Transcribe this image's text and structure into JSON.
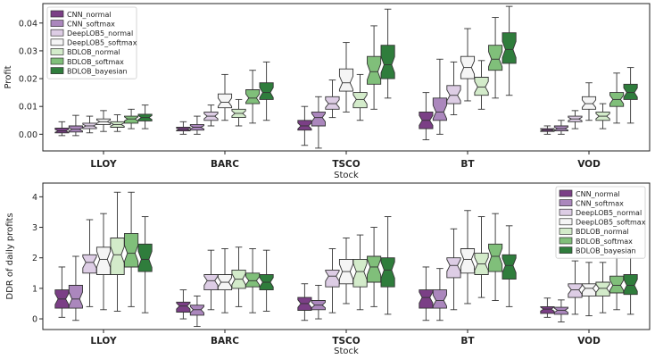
{
  "colors": {
    "CNN_normal": "#7b3f86",
    "CNN_softmax": "#ab87bd",
    "DeepLOB5_normal": "#ddcde5",
    "DeepLOB5_softmax": "#f5f5f5",
    "BDLOB_normal": "#d3ebca",
    "BDLOB_softmax": "#80bf7a",
    "BDLOB_bayesian": "#2f7d3c",
    "edge": "#333333"
  },
  "chart_data": [
    {
      "type": "boxplot",
      "xlabel": "Stock",
      "ylabel": "Profit",
      "ylim": [
        -0.006,
        0.047
      ],
      "yticks": [
        0.0,
        0.01,
        0.02,
        0.03,
        0.04
      ],
      "ytick_labels": [
        "0.00",
        "0.01",
        "0.02",
        "0.03",
        "0.04"
      ],
      "categories": [
        "LLOY",
        "BARC",
        "TSCO",
        "BT",
        "VOD"
      ],
      "legend_position": "top-left",
      "series": [
        {
          "name": "CNN_normal",
          "values": [
            {
              "low": -0.0005,
              "q1": 0.0005,
              "median": 0.0012,
              "q3": 0.0022,
              "high": 0.0045
            },
            {
              "low": 0.0,
              "q1": 0.0012,
              "median": 0.0018,
              "q3": 0.0025,
              "high": 0.0045
            },
            {
              "low": -0.004,
              "q1": 0.0015,
              "median": 0.003,
              "q3": 0.005,
              "high": 0.01
            },
            {
              "low": -0.002,
              "q1": 0.002,
              "median": 0.005,
              "q3": 0.008,
              "high": 0.015
            },
            {
              "low": 0.0,
              "q1": 0.001,
              "median": 0.0015,
              "q3": 0.002,
              "high": 0.003
            }
          ]
        },
        {
          "name": "CNN_softmax",
          "values": [
            {
              "low": -0.0005,
              "q1": 0.0008,
              "median": 0.0018,
              "q3": 0.003,
              "high": 0.0068
            },
            {
              "low": 0.0,
              "q1": 0.0015,
              "median": 0.0025,
              "q3": 0.0035,
              "high": 0.0065
            },
            {
              "low": -0.005,
              "q1": 0.003,
              "median": 0.006,
              "q3": 0.008,
              "high": 0.0135
            },
            {
              "low": 0.0,
              "q1": 0.005,
              "median": 0.008,
              "q3": 0.013,
              "high": 0.027
            },
            {
              "low": 0.0,
              "q1": 0.0012,
              "median": 0.002,
              "q3": 0.003,
              "high": 0.005
            }
          ]
        },
        {
          "name": "DeepLOB5_normal",
          "values": [
            {
              "low": 0.0005,
              "q1": 0.002,
              "median": 0.003,
              "q3": 0.004,
              "high": 0.0065
            },
            {
              "low": 0.003,
              "q1": 0.005,
              "median": 0.0065,
              "q3": 0.008,
              "high": 0.0105
            },
            {
              "low": 0.006,
              "q1": 0.009,
              "median": 0.011,
              "q3": 0.0135,
              "high": 0.0195
            },
            {
              "low": 0.007,
              "q1": 0.011,
              "median": 0.014,
              "q3": 0.0175,
              "high": 0.026
            },
            {
              "low": 0.002,
              "q1": 0.0045,
              "median": 0.0055,
              "q3": 0.0065,
              "high": 0.0085
            }
          ]
        },
        {
          "name": "DeepLOB5_softmax",
          "values": [
            {
              "low": 0.001,
              "q1": 0.0035,
              "median": 0.0045,
              "q3": 0.0055,
              "high": 0.0085
            },
            {
              "low": 0.005,
              "q1": 0.0095,
              "median": 0.0115,
              "q3": 0.0145,
              "high": 0.0215
            },
            {
              "low": 0.008,
              "q1": 0.0155,
              "median": 0.0185,
              "q3": 0.0235,
              "high": 0.033
            },
            {
              "low": 0.012,
              "q1": 0.02,
              "median": 0.024,
              "q3": 0.028,
              "high": 0.038
            },
            {
              "low": 0.005,
              "q1": 0.009,
              "median": 0.011,
              "q3": 0.0135,
              "high": 0.0185
            }
          ]
        },
        {
          "name": "BDLOB_normal",
          "values": [
            {
              "low": 0.001,
              "q1": 0.0025,
              "median": 0.0035,
              "q3": 0.0045,
              "high": 0.007
            },
            {
              "low": 0.003,
              "q1": 0.006,
              "median": 0.0075,
              "q3": 0.009,
              "high": 0.0125
            },
            {
              "low": 0.005,
              "q1": 0.0095,
              "median": 0.0125,
              "q3": 0.015,
              "high": 0.0215
            },
            {
              "low": 0.009,
              "q1": 0.014,
              "median": 0.017,
              "q3": 0.0205,
              "high": 0.0265
            },
            {
              "low": 0.002,
              "q1": 0.005,
              "median": 0.0065,
              "q3": 0.008,
              "high": 0.011
            }
          ]
        },
        {
          "name": "BDLOB_softmax",
          "values": [
            {
              "low": 0.002,
              "q1": 0.004,
              "median": 0.0055,
              "q3": 0.0065,
              "high": 0.009
            },
            {
              "low": 0.004,
              "q1": 0.011,
              "median": 0.013,
              "q3": 0.016,
              "high": 0.023
            },
            {
              "low": 0.009,
              "q1": 0.018,
              "median": 0.0225,
              "q3": 0.028,
              "high": 0.039
            },
            {
              "low": 0.013,
              "q1": 0.023,
              "median": 0.027,
              "q3": 0.032,
              "high": 0.042
            },
            {
              "low": 0.004,
              "q1": 0.01,
              "median": 0.0125,
              "q3": 0.015,
              "high": 0.022
            }
          ]
        },
        {
          "name": "BDLOB_bayesian",
          "values": [
            {
              "low": 0.002,
              "q1": 0.0048,
              "median": 0.006,
              "q3": 0.0072,
              "high": 0.0105
            },
            {
              "low": 0.005,
              "q1": 0.0125,
              "median": 0.015,
              "q3": 0.0185,
              "high": 0.026
            },
            {
              "low": 0.013,
              "q1": 0.02,
              "median": 0.025,
              "q3": 0.032,
              "high": 0.045
            },
            {
              "low": 0.014,
              "q1": 0.0255,
              "median": 0.0305,
              "q3": 0.0365,
              "high": 0.046
            },
            {
              "low": 0.004,
              "q1": 0.0125,
              "median": 0.015,
              "q3": 0.018,
              "high": 0.024
            }
          ]
        }
      ]
    },
    {
      "type": "boxplot",
      "xlabel": "Stock",
      "ylabel": "DDR of daily profits",
      "ylim": [
        -0.35,
        4.45
      ],
      "yticks": [
        0,
        1,
        2,
        3,
        4
      ],
      "ytick_labels": [
        "0",
        "1",
        "2",
        "3",
        "4"
      ],
      "categories": [
        "LLOY",
        "BARC",
        "TSCO",
        "BT",
        "VOD"
      ],
      "legend_position": "top-right",
      "series": [
        {
          "name": "CNN_normal",
          "values": [
            {
              "low": 0.05,
              "q1": 0.35,
              "median": 0.65,
              "q3": 0.95,
              "high": 1.7
            },
            {
              "low": 0.0,
              "q1": 0.22,
              "median": 0.42,
              "q3": 0.55,
              "high": 0.95
            },
            {
              "low": -0.05,
              "q1": 0.28,
              "median": 0.5,
              "q3": 0.7,
              "high": 1.15
            },
            {
              "low": -0.05,
              "q1": 0.35,
              "median": 0.7,
              "q3": 0.95,
              "high": 1.7
            },
            {
              "low": 0.05,
              "q1": 0.18,
              "median": 0.32,
              "q3": 0.4,
              "high": 0.68
            }
          ]
        },
        {
          "name": "CNN_softmax",
          "values": [
            {
              "low": -0.05,
              "q1": 0.35,
              "median": 0.65,
              "q3": 1.1,
              "high": 2.05
            },
            {
              "low": -0.25,
              "q1": 0.12,
              "median": 0.3,
              "q3": 0.45,
              "high": 0.75
            },
            {
              "low": 0.0,
              "q1": 0.3,
              "median": 0.45,
              "q3": 0.6,
              "high": 1.1
            },
            {
              "low": -0.05,
              "q1": 0.35,
              "median": 0.6,
              "q3": 0.95,
              "high": 1.65
            },
            {
              "low": -0.1,
              "q1": 0.15,
              "median": 0.28,
              "q3": 0.38,
              "high": 0.62
            }
          ]
        },
        {
          "name": "DeepLOB5_normal",
          "values": [
            {
              "low": 0.4,
              "q1": 1.5,
              "median": 1.85,
              "q3": 2.1,
              "high": 3.25
            },
            {
              "low": 0.3,
              "q1": 0.95,
              "median": 1.25,
              "q3": 1.45,
              "high": 2.25
            },
            {
              "low": 0.2,
              "q1": 1.05,
              "median": 1.4,
              "q3": 1.6,
              "high": 2.3
            },
            {
              "low": 0.3,
              "q1": 1.35,
              "median": 1.75,
              "q3": 2.0,
              "high": 2.95
            },
            {
              "low": 0.15,
              "q1": 0.7,
              "median": 0.95,
              "q3": 1.15,
              "high": 1.9
            }
          ]
        },
        {
          "name": "DeepLOB5_softmax",
          "values": [
            {
              "low": 0.3,
              "q1": 1.45,
              "median": 1.95,
              "q3": 2.35,
              "high": 3.45
            },
            {
              "low": 0.2,
              "q1": 0.95,
              "median": 1.2,
              "q3": 1.45,
              "high": 2.3
            },
            {
              "low": 0.5,
              "q1": 1.15,
              "median": 1.55,
              "q3": 1.95,
              "high": 2.65
            },
            {
              "low": 0.5,
              "q1": 1.5,
              "median": 1.95,
              "q3": 2.3,
              "high": 3.55
            },
            {
              "low": 0.1,
              "q1": 0.75,
              "median": 1.0,
              "q3": 1.15,
              "high": 1.85
            }
          ]
        },
        {
          "name": "BDLOB_normal",
          "values": [
            {
              "low": 0.25,
              "q1": 1.45,
              "median": 2.1,
              "q3": 2.65,
              "high": 4.15
            },
            {
              "low": 0.4,
              "q1": 1.0,
              "median": 1.3,
              "q3": 1.6,
              "high": 2.35
            },
            {
              "low": 0.3,
              "q1": 1.05,
              "median": 1.55,
              "q3": 1.95,
              "high": 2.75
            },
            {
              "low": 0.7,
              "q1": 1.45,
              "median": 1.8,
              "q3": 2.15,
              "high": 3.35
            },
            {
              "low": 0.2,
              "q1": 0.75,
              "median": 1.0,
              "q3": 1.2,
              "high": 1.85
            }
          ]
        },
        {
          "name": "BDLOB_softmax",
          "values": [
            {
              "low": 0.4,
              "q1": 1.7,
              "median": 2.15,
              "q3": 2.8,
              "high": 4.15
            },
            {
              "low": 0.2,
              "q1": 1.05,
              "median": 1.25,
              "q3": 1.5,
              "high": 2.3
            },
            {
              "low": 0.4,
              "q1": 1.2,
              "median": 1.7,
              "q3": 2.05,
              "high": 3.0
            },
            {
              "low": 0.6,
              "q1": 1.55,
              "median": 2.05,
              "q3": 2.45,
              "high": 3.45
            },
            {
              "low": 0.3,
              "q1": 0.85,
              "median": 1.1,
              "q3": 1.4,
              "high": 2.2
            }
          ]
        },
        {
          "name": "BDLOB_bayesian",
          "values": [
            {
              "low": 0.2,
              "q1": 1.55,
              "median": 1.95,
              "q3": 2.45,
              "high": 3.35
            },
            {
              "low": 0.25,
              "q1": 0.95,
              "median": 1.2,
              "q3": 1.45,
              "high": 2.25
            },
            {
              "low": 0.15,
              "q1": 1.05,
              "median": 1.6,
              "q3": 2.0,
              "high": 3.35
            },
            {
              "low": 0.4,
              "q1": 1.3,
              "median": 1.75,
              "q3": 2.1,
              "high": 3.05
            },
            {
              "low": 0.15,
              "q1": 0.8,
              "median": 1.1,
              "q3": 1.45,
              "high": 2.35
            }
          ]
        }
      ]
    }
  ]
}
